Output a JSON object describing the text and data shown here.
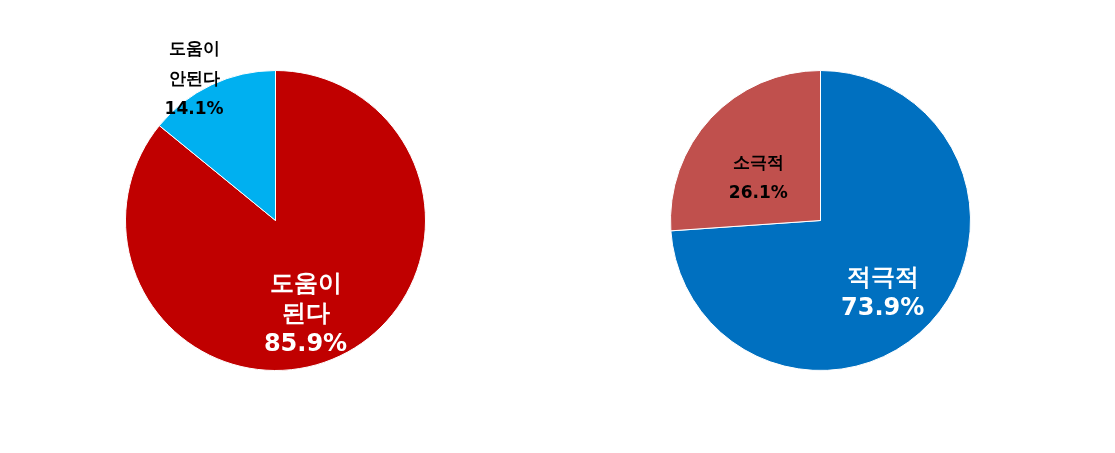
{
  "chart_data": [
    {
      "type": "pie",
      "categories": [
        "도움이 된다",
        "도움이 안된다"
      ],
      "values": [
        85.9,
        14.1
      ],
      "colors": [
        "#c00000",
        "#00b0f0"
      ],
      "value_labels": [
        "85.9%",
        "14.1%"
      ]
    },
    {
      "type": "pie",
      "categories": [
        "적극적",
        "소극적"
      ],
      "values": [
        73.9,
        26.1
      ],
      "colors": [
        "#0070c0",
        "#c0504d"
      ],
      "value_labels": [
        "73.9%",
        "26.1%"
      ]
    }
  ]
}
